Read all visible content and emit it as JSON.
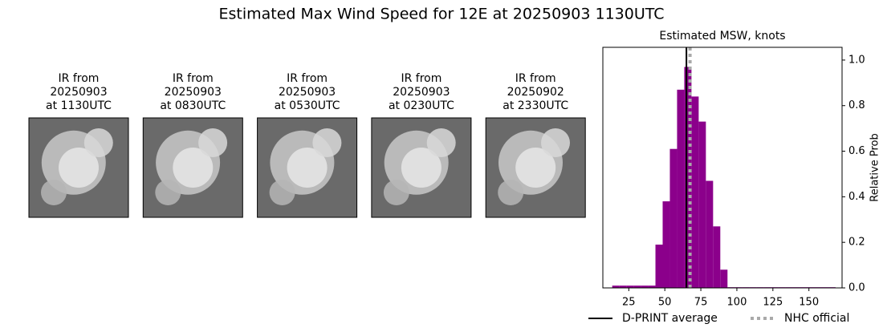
{
  "title": "Estimated Max Wind Speed for 12E at 20250903 1130UTC",
  "panels": [
    {
      "lines": [
        "IR from",
        "20250903",
        "at 1130UTC"
      ]
    },
    {
      "lines": [
        "IR from",
        "20250903",
        "at 0830UTC"
      ]
    },
    {
      "lines": [
        "IR from",
        "20250903",
        "at 0530UTC"
      ]
    },
    {
      "lines": [
        "IR from",
        "20250903",
        "at 0230UTC"
      ]
    },
    {
      "lines": [
        "IR from",
        "20250902",
        "at 2330UTC"
      ]
    }
  ],
  "chart_data": {
    "type": "histogram",
    "title": "Estimated MSW, knots",
    "y_label": "Relative Prob",
    "color": "#8b008b",
    "bins": [
      13.5,
      18.5,
      23.5,
      28.5,
      33.5,
      38.5,
      43.5,
      48.5,
      53.5,
      58.5,
      63.5,
      68.5,
      73.5,
      78.5,
      83.5,
      88.5,
      93.5,
      98.5,
      103.5,
      108.5,
      113.5,
      118.5,
      123.5,
      128.5,
      133.5,
      138.5,
      143.5,
      148.5,
      153.5,
      158.5,
      163.5,
      168.5
    ],
    "values": [
      0.01,
      0.01,
      0.01,
      0.01,
      0.01,
      0.01,
      0.19,
      0.38,
      0.61,
      0.87,
      0.97,
      0.84,
      0.73,
      0.47,
      0.27,
      0.08,
      0.003,
      0.003,
      0.003,
      0.003,
      0.003,
      0.003,
      0.003,
      0.003,
      0.003,
      0.003,
      0.003,
      0.003,
      0.003,
      0.003,
      0.003
    ],
    "xlim": [
      7,
      173
    ],
    "ylim": [
      0,
      1.056
    ],
    "xticks": [
      25,
      50,
      75,
      100,
      125,
      150
    ],
    "yticks": [
      {
        "value": 0,
        "label": "0.0"
      },
      {
        "value": 0.2,
        "label": "0.2"
      },
      {
        "value": 0.4,
        "label": "0.4"
      },
      {
        "value": 0.6,
        "label": "0.6"
      },
      {
        "value": 0.8,
        "label": "0.8"
      },
      {
        "value": 1.0,
        "label": "1.0"
      }
    ],
    "lines": [
      {
        "name": "D-PRINT average",
        "value": 65,
        "color": "#000000",
        "style": "solid"
      },
      {
        "name": "NHC official",
        "value": 67.5,
        "color": "#a9a9a9",
        "style": "dotted"
      }
    ]
  }
}
